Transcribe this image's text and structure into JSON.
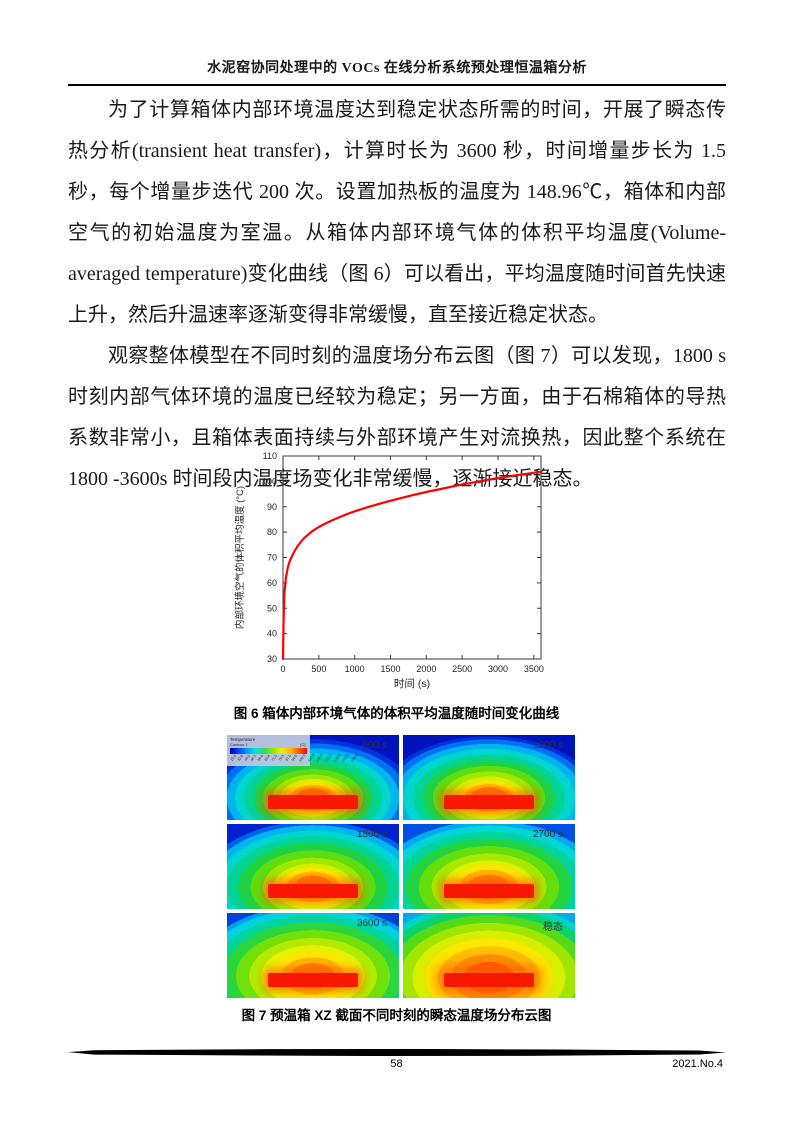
{
  "header": {
    "title": "水泥窑协同处理中的 VOCs 在线分析系统预处理恒温箱分析"
  },
  "paragraphs": [
    "为了计算箱体内部环境温度达到稳定状态所需的时间，开展了瞬态传热分析(transient heat transfer)，计算时长为 3600 秒，时间增量步长为 1.5 秒，每个增量步迭代 200 次。设置加热板的温度为 148.96℃，箱体和内部空气的初始温度为室温。从箱体内部环境气体的体积平均温度(Volume-averaged temperature)变化曲线（图 6）可以看出，平均温度随时间首先快速上升，然后升温速率逐渐变得非常缓慢，直至接近稳定状态。",
    "观察整体模型在不同时刻的温度场分布云图（图 7）可以发现，1800 s 时刻内部气体环境的温度已经较为稳定；另一方面，由于石棉箱体的导热系数非常小，且箱体表面持续与外部环境产生对流换热，因此整个系统在 1800 -3600s 时间段内温度场变化非常缓慢，逐渐接近稳态。"
  ],
  "chart_data": {
    "type": "line",
    "title": "",
    "xlabel": "时间 (s)",
    "ylabel": "内部环境空气的体积平均温度 (°C)",
    "xlim": [
      0,
      3600
    ],
    "ylim": [
      30,
      110
    ],
    "xticks": [
      0,
      500,
      1000,
      1500,
      2000,
      2500,
      3000,
      3500
    ],
    "yticks": [
      30,
      40,
      50,
      60,
      70,
      80,
      90,
      100,
      110
    ],
    "grid": false,
    "line_color": "#ff0000",
    "series": [
      {
        "name": "箱体内部环境气体的体积平均温度",
        "x": [
          0,
          8,
          20,
          40,
          70,
          100,
          150,
          200,
          250,
          300,
          400,
          500,
          600,
          700,
          800,
          900,
          1000,
          1200,
          1400,
          1600,
          1800,
          2000,
          2200,
          2400,
          2600,
          2800,
          3000,
          3200,
          3400,
          3600
        ],
        "y": [
          30,
          46,
          56,
          62,
          66.5,
          69,
          72,
          74.3,
          76.2,
          77.8,
          80.2,
          82,
          83.5,
          84.8,
          86,
          87.2,
          88.2,
          90,
          91.6,
          93.1,
          94.5,
          95.8,
          97,
          98.2,
          99.3,
          100.3,
          101.3,
          102.2,
          103,
          103.8
        ]
      }
    ]
  },
  "figure6": {
    "caption": "图 6 箱体内部环境气体的体积平均温度随时间变化曲线"
  },
  "figure7": {
    "caption": "图 7 预温箱 XZ 截面不同时刻的瞬态温度场分布云图",
    "legend": {
      "title": "Temperature",
      "subtitle": "Contour 1",
      "unit": "[C]",
      "colorbar_ticks": [
        "25.0",
        "32.8",
        "40.5",
        "48.3",
        "56.0",
        "63.8",
        "71.5",
        "79.3",
        "87.0",
        "94.8",
        "102.5",
        "110.3",
        "118.0",
        "125.8",
        "133.5",
        "141.3",
        "149.0"
      ]
    },
    "panels": [
      {
        "label": "600 s"
      },
      {
        "label": "1200 s"
      },
      {
        "label": "1800 s"
      },
      {
        "label": "2700 s"
      },
      {
        "label": "3600 s"
      },
      {
        "label": "稳态"
      }
    ],
    "colors": {
      "hot_plate": "#f81800",
      "cold_edge": "#0013bd",
      "legend_bg": "#bac7dd"
    }
  },
  "footer": {
    "page_number": "58",
    "issue": "2021.No.4"
  }
}
